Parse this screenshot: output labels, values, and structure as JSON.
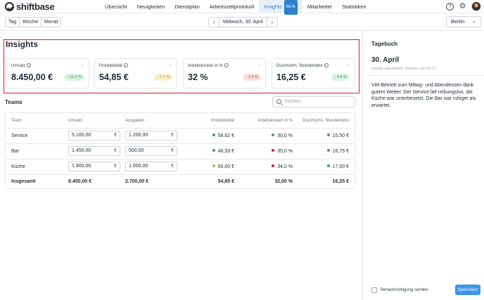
{
  "app": {
    "logo": "shiftbase"
  },
  "nav": {
    "items": [
      "Übersicht",
      "Neuigkeiten",
      "Dienstplan",
      "Arbeitszeitprotokoll",
      "Insights",
      "Mitarbeiter",
      "Statistiken"
    ],
    "beta": "BETA"
  },
  "toolbar": {
    "periods": [
      "Tag",
      "Woche",
      "Monat"
    ],
    "date": "Mittwoch, 30. April",
    "location": "Berlin"
  },
  "insights": {
    "title": "Insights",
    "kpis": [
      {
        "label": "Umsatz",
        "value": "8.450,00 €",
        "change": "11,2 %",
        "trend": "up",
        "color": "green"
      },
      {
        "label": "Produktivität",
        "value": "54,85 €",
        "change": "2,1 %",
        "trend": "down",
        "color": "orange"
      },
      {
        "label": "Arbeitskosten in %",
        "value": "32 %",
        "change": "2,0 %",
        "trend": "up",
        "color": "red"
      },
      {
        "label": "Durchschn. Stundenlohn",
        "value": "16,25 €",
        "change": "4,4 %",
        "trend": "down",
        "color": "green"
      }
    ]
  },
  "teams": {
    "title": "Teams",
    "search_placeholder": "Suchen",
    "headers": [
      "Team",
      "Umsatz",
      "Ausgaben",
      "Produktivität",
      "Arbeitskosten in %",
      "Durchschn. Stundenlohn"
    ],
    "currency": "€",
    "rows": [
      {
        "team": "Service",
        "umsatz": "5.100,00",
        "ausgaben": "1.200,00",
        "produktivitaet": "58,62 €",
        "prod_color": "#3aa35c",
        "kosten": "30,0 %",
        "kosten_color": "#3aa35c",
        "lohn": "15,50 €",
        "lohn_color": "#3aa35c"
      },
      {
        "team": "Bar",
        "umsatz": "1.450,00",
        "ausgaben": "500,00",
        "produktivitaet": "48,33 €",
        "prod_color": "#3aa35c",
        "kosten": "35,0 %",
        "kosten_color": "#d0202e",
        "lohn": "16,75 €",
        "lohn_color": "#3aa35c"
      },
      {
        "team": "Küche",
        "umsatz": "1.900,00",
        "ausgaben": "1.000,00",
        "produktivitaet": "50,00 €",
        "prod_color": "#e0a31a",
        "kosten": "34,0 %",
        "kosten_color": "#d0202e",
        "lohn": "17,00 €",
        "lohn_color": "#3aa35c"
      }
    ],
    "total": {
      "label": "Insgesamt",
      "umsatz": "8.450,00 €",
      "ausgaben": "2.700,00 €",
      "produktivitaet": "54,85 €",
      "kosten": "32,00 %",
      "lohn": "16,25 €"
    }
  },
  "journal": {
    "title": "Tagebuch",
    "date": "30. April",
    "updated": "Zuletzt aktualisiert: Gestern um 23:17",
    "note": "Viel Betrieb zum Mittag- und Abendessen dank gutem Wetter. Der Service lief reibungslos, die Küche war unterbesetzt. Die Bar war ruhiger als erwartet.",
    "notify_label": "Benachrichtigung senden",
    "save_label": "Speichern"
  }
}
